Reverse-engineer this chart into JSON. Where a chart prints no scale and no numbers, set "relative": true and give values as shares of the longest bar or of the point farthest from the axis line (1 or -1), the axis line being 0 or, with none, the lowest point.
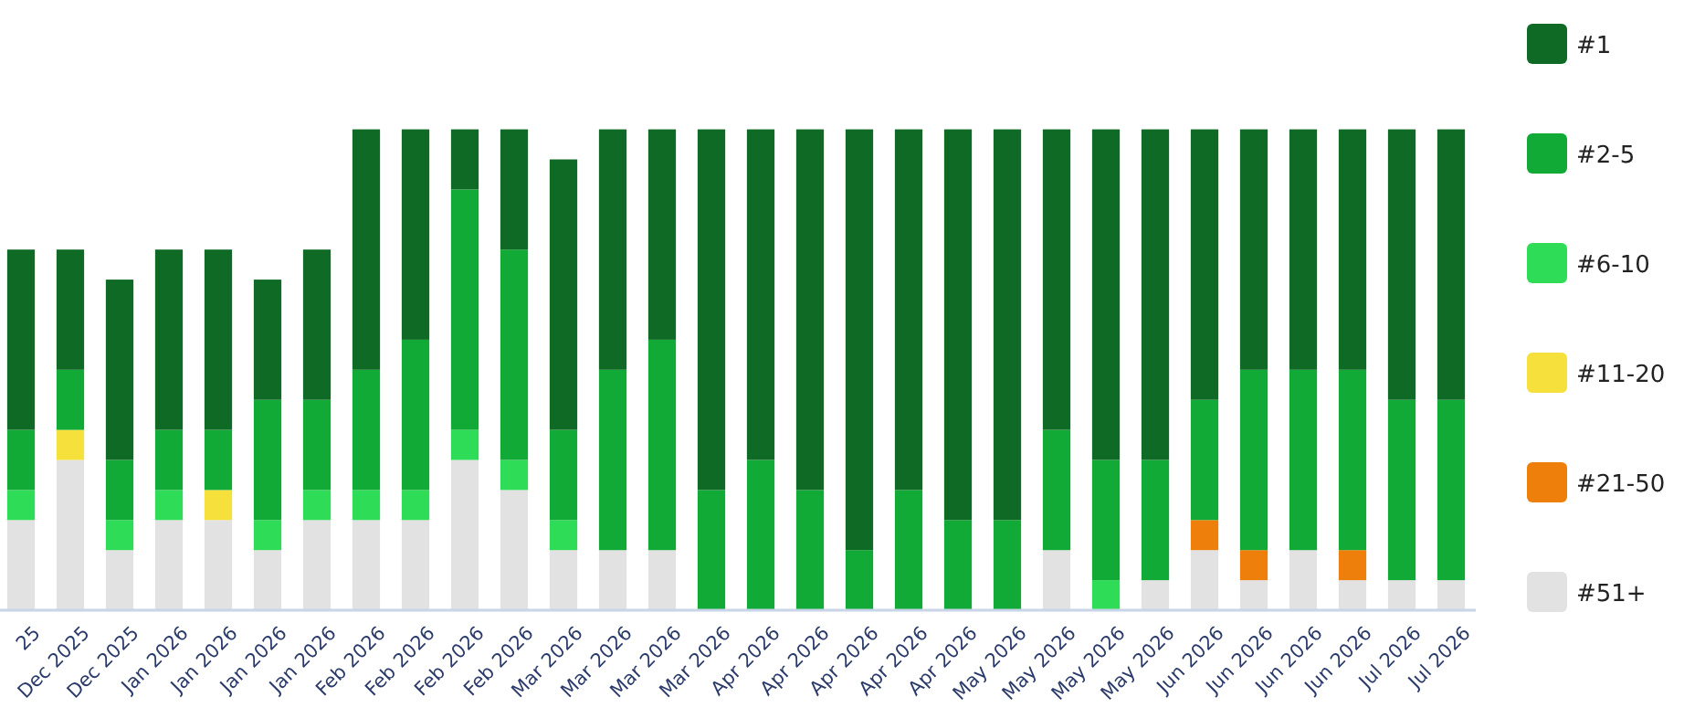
{
  "chart_data": {
    "type": "bar",
    "stacked": true,
    "relative": true,
    "legend": "right",
    "categories": [
      "25",
      "Dec 2025",
      "Dec 2025",
      "Jan 2026",
      "Jan 2026",
      "Jan 2026",
      "Jan 2026",
      "Feb 2026",
      "Feb 2026",
      "Feb 2026",
      "Feb 2026",
      "Mar 2026",
      "Mar 2026",
      "Mar 2026",
      "Mar 2026",
      "Apr 2026",
      "Apr 2026",
      "Apr 2026",
      "Apr 2026",
      "Apr 2026",
      "May 2026",
      "May 2026",
      "May 2026",
      "May 2026",
      "Jun 2026",
      "Jun 2026",
      "Jun 2026",
      "Jun 2026",
      "Jul 2026",
      "Jul 2026"
    ],
    "series": [
      {
        "name": "#51+",
        "color": "#e2e2e2",
        "values": [
          0.1875,
          0.3125,
          0.125,
          0.1875,
          0.1875,
          0.125,
          0.1875,
          0.1875,
          0.1875,
          0.3125,
          0.25,
          0.125,
          0.125,
          0.125,
          0,
          0,
          0,
          0,
          0,
          0,
          0,
          0.125,
          0,
          0.0625,
          0.125,
          0.0625,
          0.125,
          0.0625,
          0.0625,
          0.0625
        ]
      },
      {
        "name": "#21-50",
        "color": "#ee7f0a",
        "values": [
          0,
          0,
          0,
          0,
          0,
          0,
          0,
          0,
          0,
          0,
          0,
          0,
          0,
          0,
          0,
          0,
          0,
          0,
          0,
          0,
          0,
          0,
          0,
          0,
          0.0625,
          0.0625,
          0,
          0.0625,
          0,
          0
        ]
      },
      {
        "name": "#11-20",
        "color": "#f5e03c",
        "values": [
          0,
          0.0625,
          0,
          0,
          0.0625,
          0,
          0,
          0,
          0,
          0,
          0,
          0,
          0,
          0,
          0,
          0,
          0,
          0,
          0,
          0,
          0,
          0,
          0,
          0,
          0,
          0,
          0,
          0,
          0,
          0
        ]
      },
      {
        "name": "#6-10",
        "color": "#2fdc57",
        "values": [
          0.0625,
          0,
          0.0625,
          0.0625,
          0,
          0.0625,
          0.0625,
          0.0625,
          0.0625,
          0.0625,
          0.0625,
          0.0625,
          0,
          0,
          0,
          0,
          0,
          0,
          0,
          0,
          0,
          0,
          0.0625,
          0,
          0,
          0,
          0,
          0,
          0,
          0
        ]
      },
      {
        "name": "#2-5",
        "color": "#12aa36",
        "values": [
          0.125,
          0.125,
          0.125,
          0.125,
          0.125,
          0.25,
          0.1875,
          0.25,
          0.3125,
          0.5,
          0.4375,
          0.1875,
          0.375,
          0.4375,
          0.25,
          0.3125,
          0.25,
          0.125,
          0.25,
          0.1875,
          0.1875,
          0.25,
          0.25,
          0.25,
          0.25,
          0.375,
          0.375,
          0.375,
          0.375,
          0.375
        ]
      },
      {
        "name": "#1",
        "color": "#0f6a25",
        "values": [
          0.375,
          0.25,
          0.375,
          0.375,
          0.375,
          0.25,
          0.3125,
          0.5,
          0.4375,
          0.125,
          0.25,
          0.5625,
          0.5,
          0.4375,
          0.75,
          0.6875,
          0.75,
          0.875,
          0.75,
          0.8125,
          0.8125,
          0.625,
          0.6875,
          0.6875,
          0.5625,
          0.5,
          0.5,
          0.5,
          0.5625,
          0.5625
        ]
      }
    ]
  }
}
